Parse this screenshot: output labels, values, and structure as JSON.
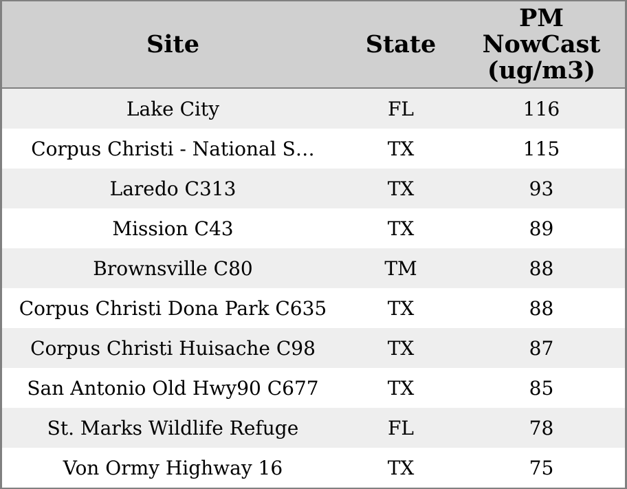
{
  "colors": {
    "header-bg": "#d0d0d0",
    "row-alt": "#eeeeee",
    "row-bg": "#ffffff",
    "border": "#808080",
    "text": "#000000"
  },
  "table": {
    "columns": {
      "site": "Site",
      "state": "State",
      "pm": "PM\nNowCast\n(ug/m3)"
    },
    "rows": [
      {
        "site": "Lake City",
        "state": "FL",
        "pm": "116"
      },
      {
        "site": "Corpus Christi - National S…",
        "state": "TX",
        "pm": "115"
      },
      {
        "site": "Laredo C313",
        "state": "TX",
        "pm": "93"
      },
      {
        "site": "Mission C43",
        "state": "TX",
        "pm": "89"
      },
      {
        "site": "Brownsville C80",
        "state": "TM",
        "pm": "88"
      },
      {
        "site": "Corpus Christi Dona Park C635",
        "state": "TX",
        "pm": "88"
      },
      {
        "site": "Corpus Christi Huisache C98",
        "state": "TX",
        "pm": "87"
      },
      {
        "site": "San Antonio Old Hwy90 C677",
        "state": "TX",
        "pm": "85"
      },
      {
        "site": "St. Marks Wildlife Refuge",
        "state": "FL",
        "pm": "78"
      },
      {
        "site": "Von Ormy Highway 16",
        "state": "TX",
        "pm": "75"
      }
    ]
  }
}
